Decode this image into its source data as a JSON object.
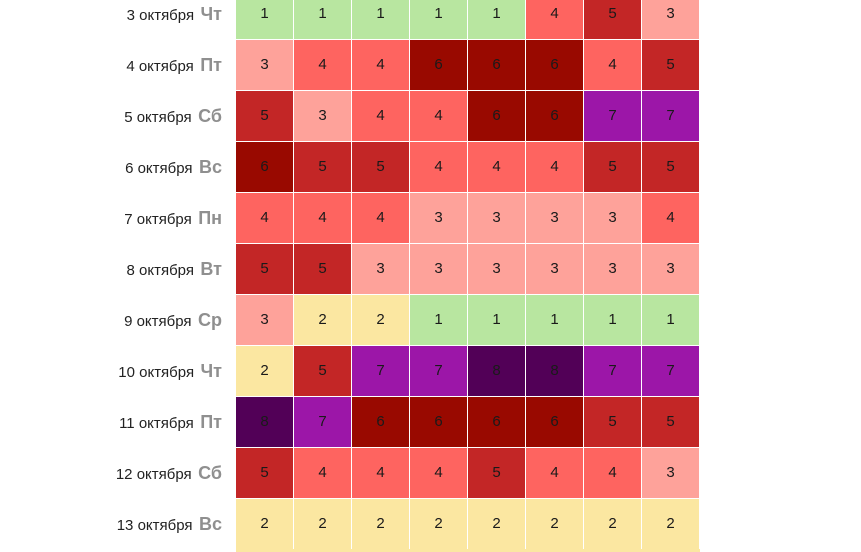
{
  "colors": {
    "1": "#b8e6a0",
    "2": "#fbe7a1",
    "3": "#fea29a",
    "4": "#fe6460",
    "5": "#c32626",
    "6": "#990900",
    "7": "#9c16a8",
    "8": "#520057"
  },
  "rows": [
    {
      "date": "3 октября",
      "dow": "Чт",
      "values": [
        1,
        1,
        1,
        1,
        1,
        4,
        5,
        3
      ]
    },
    {
      "date": "4 октября",
      "dow": "Пт",
      "values": [
        3,
        4,
        4,
        6,
        6,
        6,
        4,
        5
      ]
    },
    {
      "date": "5 октября",
      "dow": "Сб",
      "values": [
        5,
        3,
        4,
        4,
        6,
        6,
        7,
        7
      ]
    },
    {
      "date": "6 октября",
      "dow": "Вс",
      "values": [
        6,
        5,
        5,
        4,
        4,
        4,
        5,
        5
      ]
    },
    {
      "date": "7 октября",
      "dow": "Пн",
      "values": [
        4,
        4,
        4,
        3,
        3,
        3,
        3,
        4
      ]
    },
    {
      "date": "8 октября",
      "dow": "Вт",
      "values": [
        5,
        5,
        3,
        3,
        3,
        3,
        3,
        3
      ]
    },
    {
      "date": "9 октября",
      "dow": "Ср",
      "values": [
        3,
        2,
        2,
        1,
        1,
        1,
        1,
        1
      ]
    },
    {
      "date": "10 октября",
      "dow": "Чт",
      "values": [
        2,
        5,
        7,
        7,
        8,
        8,
        7,
        7
      ]
    },
    {
      "date": "11 октября",
      "dow": "Пт",
      "values": [
        8,
        7,
        6,
        6,
        6,
        6,
        5,
        5
      ]
    },
    {
      "date": "12 октября",
      "dow": "Сб",
      "values": [
        5,
        4,
        4,
        4,
        5,
        4,
        4,
        3
      ]
    },
    {
      "date": "13 октября",
      "dow": "Вс",
      "values": [
        2,
        2,
        2,
        2,
        2,
        2,
        2,
        2
      ]
    }
  ]
}
